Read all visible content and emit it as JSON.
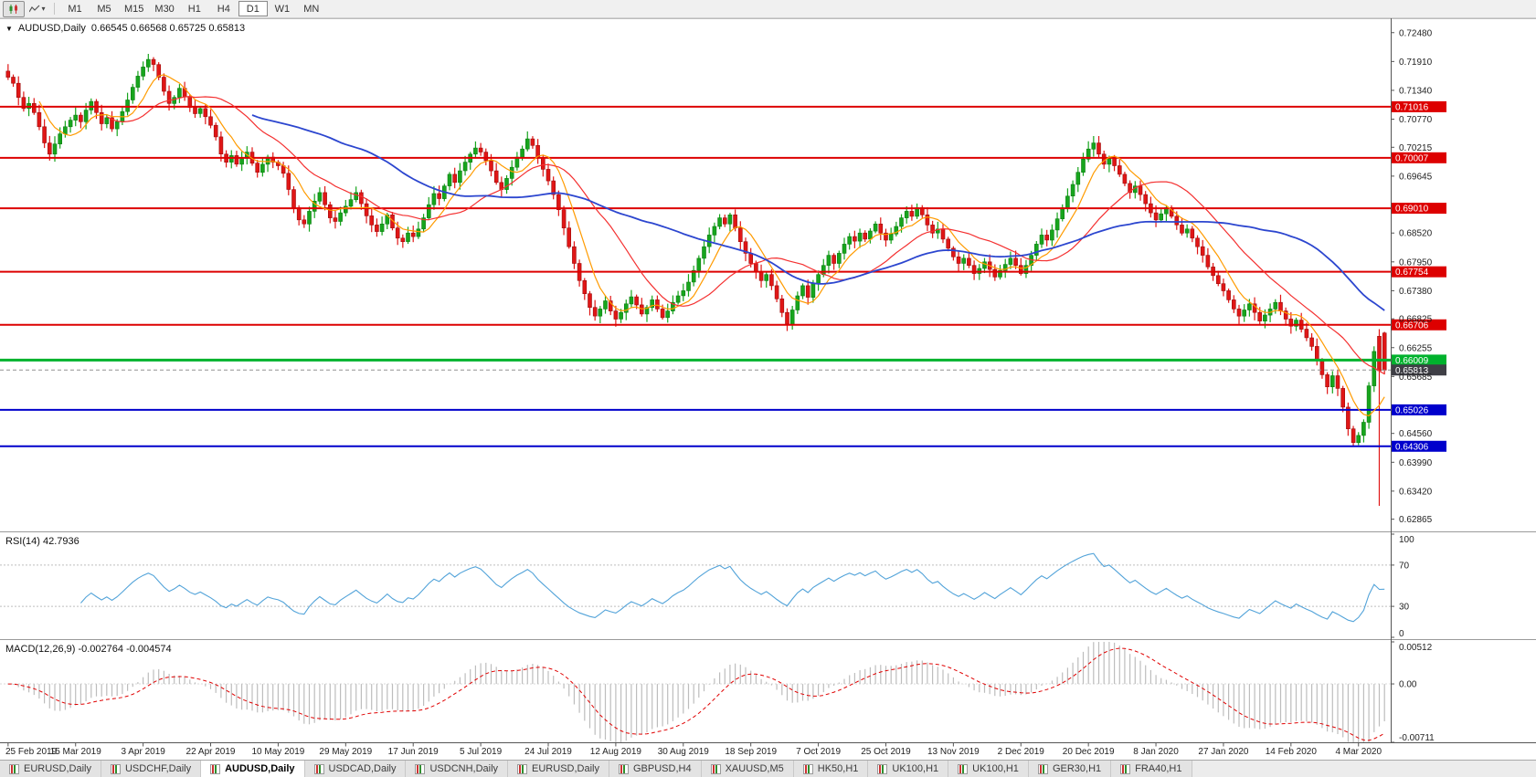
{
  "toolbar": {
    "timeframes": [
      "M1",
      "M5",
      "M15",
      "M30",
      "H1",
      "H4",
      "D1",
      "W1",
      "MN"
    ],
    "active_timeframe": "D1",
    "dropdown_caret": "▾"
  },
  "chart": {
    "collapse_icon": "▼",
    "title": "AUDUSD,Daily",
    "ohlc": "0.66545 0.66568 0.65725 0.65813"
  },
  "chart_data": {
    "type": "candlestick",
    "symbol": "AUDUSD",
    "timeframe": "Daily",
    "current_bar": {
      "open": 0.66545,
      "high": 0.66568,
      "low": 0.65725,
      "close": 0.65813
    },
    "price_range": [
      0.6266,
      0.7262
    ],
    "y_ticks": [
      "0.72480",
      "0.71910",
      "0.71340",
      "0.70770",
      "0.70215",
      "0.69645",
      "0.69075",
      "0.68520",
      "0.67950",
      "0.67380",
      "0.66825",
      "0.66255",
      "0.65685",
      "0.65115",
      "0.64560",
      "0.63990",
      "0.63420",
      "0.62865"
    ],
    "x_labels": [
      "25 Feb 2019",
      "15 Mar 2019",
      "3 Apr 2019",
      "22 Apr 2019",
      "10 May 2019",
      "29 May 2019",
      "17 Jun 2019",
      "5 Jul 2019",
      "24 Jul 2019",
      "12 Aug 2019",
      "30 Aug 2019",
      "18 Sep 2019",
      "7 Oct 2019",
      "25 Oct 2019",
      "13 Nov 2019",
      "2 Dec 2019",
      "20 Dec 2019",
      "8 Jan 2020",
      "27 Jan 2020",
      "14 Feb 2020",
      "4 Mar 2020"
    ],
    "label_every": 13,
    "wick": 0.0016,
    "colors": {
      "up": "#17a51d",
      "up_border": "#0c7d11",
      "down": "#e01616",
      "down_border": "#9e0d0d"
    },
    "closes": [
      0.716,
      0.7148,
      0.712,
      0.7098,
      0.7108,
      0.709,
      0.7062,
      0.703,
      0.7008,
      0.7028,
      0.7048,
      0.7062,
      0.7075,
      0.7085,
      0.7072,
      0.7095,
      0.7112,
      0.709,
      0.7068,
      0.708,
      0.7058,
      0.7072,
      0.7092,
      0.7115,
      0.714,
      0.7162,
      0.718,
      0.7195,
      0.7185,
      0.716,
      0.7132,
      0.7108,
      0.712,
      0.7138,
      0.7122,
      0.71,
      0.7088,
      0.7098,
      0.7082,
      0.7065,
      0.7042,
      0.7008,
      0.6992,
      0.7005,
      0.6988,
      0.7,
      0.7012,
      0.699,
      0.6972,
      0.6988,
      0.7002,
      0.6992,
      0.6985,
      0.697,
      0.6938,
      0.6902,
      0.6878,
      0.687,
      0.6895,
      0.6915,
      0.6932,
      0.6908,
      0.6882,
      0.6875,
      0.6892,
      0.6905,
      0.6918,
      0.6932,
      0.691,
      0.6886,
      0.6868,
      0.6855,
      0.687,
      0.6888,
      0.6862,
      0.6842,
      0.6835,
      0.6852,
      0.6845,
      0.686,
      0.6882,
      0.6908,
      0.693,
      0.692,
      0.6945,
      0.6968,
      0.6952,
      0.6975,
      0.6992,
      0.7008,
      0.702,
      0.7012,
      0.6995,
      0.6975,
      0.6952,
      0.6938,
      0.696,
      0.6982,
      0.7002,
      0.7018,
      0.7038,
      0.7025,
      0.7,
      0.6978,
      0.6955,
      0.6928,
      0.6898,
      0.6862,
      0.6825,
      0.6792,
      0.6758,
      0.6732,
      0.6705,
      0.6688,
      0.6702,
      0.6718,
      0.6698,
      0.6682,
      0.6695,
      0.6712,
      0.6726,
      0.671,
      0.6692,
      0.6705,
      0.672,
      0.6702,
      0.6685,
      0.6698,
      0.6715,
      0.6728,
      0.6738,
      0.6755,
      0.6778,
      0.6802,
      0.6825,
      0.6848,
      0.6865,
      0.6882,
      0.687,
      0.6888,
      0.6862,
      0.6835,
      0.6812,
      0.6792,
      0.6775,
      0.6758,
      0.677,
      0.6748,
      0.6722,
      0.6695,
      0.6672,
      0.67,
      0.6728,
      0.6748,
      0.6725,
      0.6752,
      0.677,
      0.6788,
      0.6808,
      0.6792,
      0.6812,
      0.683,
      0.6845,
      0.6836,
      0.6852,
      0.684,
      0.6856,
      0.687,
      0.6852,
      0.6838,
      0.685,
      0.6865,
      0.6882,
      0.6895,
      0.6885,
      0.6902,
      0.6888,
      0.6868,
      0.6852,
      0.686,
      0.684,
      0.6822,
      0.6805,
      0.6792,
      0.6802,
      0.6788,
      0.6772,
      0.6782,
      0.6795,
      0.678,
      0.6765,
      0.6778,
      0.679,
      0.6802,
      0.6788,
      0.6772,
      0.6788,
      0.6808,
      0.683,
      0.6848,
      0.6838,
      0.6858,
      0.688,
      0.6902,
      0.6925,
      0.6948,
      0.6972,
      0.6998,
      0.7018,
      0.703,
      0.7008,
      0.6988,
      0.7,
      0.6985,
      0.6968,
      0.695,
      0.6932,
      0.6945,
      0.6928,
      0.691,
      0.6892,
      0.6878,
      0.689,
      0.6902,
      0.6885,
      0.6868,
      0.6852,
      0.686,
      0.6842,
      0.6825,
      0.6808,
      0.6785,
      0.6768,
      0.6752,
      0.6738,
      0.672,
      0.6702,
      0.6688,
      0.67,
      0.6712,
      0.6695,
      0.6678,
      0.669,
      0.6702,
      0.6715,
      0.6698,
      0.6682,
      0.6668,
      0.668,
      0.6662,
      0.6645,
      0.6628,
      0.66,
      0.6572,
      0.6548,
      0.657,
      0.6545,
      0.6508,
      0.6465,
      0.6438,
      0.6452,
      0.6478,
      0.655,
      0.6618,
      0.658,
      0.65813
    ],
    "overrides": {
      "27": {
        "h": 0.7206
      },
      "264": {
        "o": 0.6648,
        "h": 0.6662,
        "l": 0.6313,
        "c": 0.658
      },
      "265": {
        "o": 0.66545,
        "h": 0.66568,
        "l": 0.65725,
        "c": 0.65813
      }
    },
    "hlines": [
      {
        "price": 0.71016,
        "label": "0.71016",
        "color": "#dd0000",
        "width": 2
      },
      {
        "price": 0.70007,
        "label": "0.70007",
        "color": "#dd0000",
        "width": 2
      },
      {
        "price": 0.6901,
        "label": "0.69010",
        "color": "#dd0000",
        "width": 2
      },
      {
        "price": 0.67754,
        "label": "0.67754",
        "color": "#dd0000",
        "width": 2
      },
      {
        "price": 0.66706,
        "label": "0.66706",
        "color": "#dd0000",
        "width": 2
      },
      {
        "price": 0.66009,
        "label": "0.66009",
        "color": "#00b22d",
        "width": 3
      },
      {
        "price": 0.65026,
        "label": "0.65026",
        "color": "#0000cc",
        "width": 2
      },
      {
        "price": 0.64306,
        "label": "0.64306",
        "color": "#0000cc",
        "width": 2
      }
    ],
    "current_price": {
      "price": 0.65813,
      "label": "0.65813",
      "color": "#3f3f46"
    },
    "moving_averages": [
      {
        "name": "ma-fast-orange",
        "period": 7,
        "color": "#ff9b00",
        "width": 1.2
      },
      {
        "name": "ma-mid-red",
        "period": 20,
        "color": "#f43030",
        "width": 1.2
      },
      {
        "name": "ma-slow-blue",
        "period": 48,
        "color": "#2c46cf",
        "width": 1.8
      }
    ],
    "indicators": {
      "rsi": {
        "label": "RSI(14) 42.7936",
        "value": 42.7936,
        "period": 14,
        "levels": [
          70,
          30
        ],
        "axis_labels": [
          "100",
          "70",
          "30",
          "0"
        ],
        "color": "#52a3d9"
      },
      "macd": {
        "label": "MACD(12,26,9) -0.002764 -0.004574",
        "values": [
          -0.002764,
          -0.004574
        ],
        "fast": 12,
        "slow": 26,
        "signal": 9,
        "axis_labels": [
          "0.00512",
          "0.00",
          "-0.00711"
        ],
        "range": [
          -0.00711,
          0.00512
        ],
        "hist_color": "#bdbdbd",
        "signal_color": "#e00000"
      }
    }
  },
  "tabs": [
    {
      "label": "EURUSD,Daily"
    },
    {
      "label": "USDCHF,Daily"
    },
    {
      "label": "AUDUSD,Daily",
      "active": true
    },
    {
      "label": "USDCAD,Daily"
    },
    {
      "label": "USDCNH,Daily"
    },
    {
      "label": "EURUSD,Daily"
    },
    {
      "label": "GBPUSD,H4"
    },
    {
      "label": "XAUUSD,M5"
    },
    {
      "label": "HK50,H1"
    },
    {
      "label": "UK100,H1"
    },
    {
      "label": "UK100,H1"
    },
    {
      "label": "GER30,H1"
    },
    {
      "label": "FRA40,H1"
    }
  ]
}
